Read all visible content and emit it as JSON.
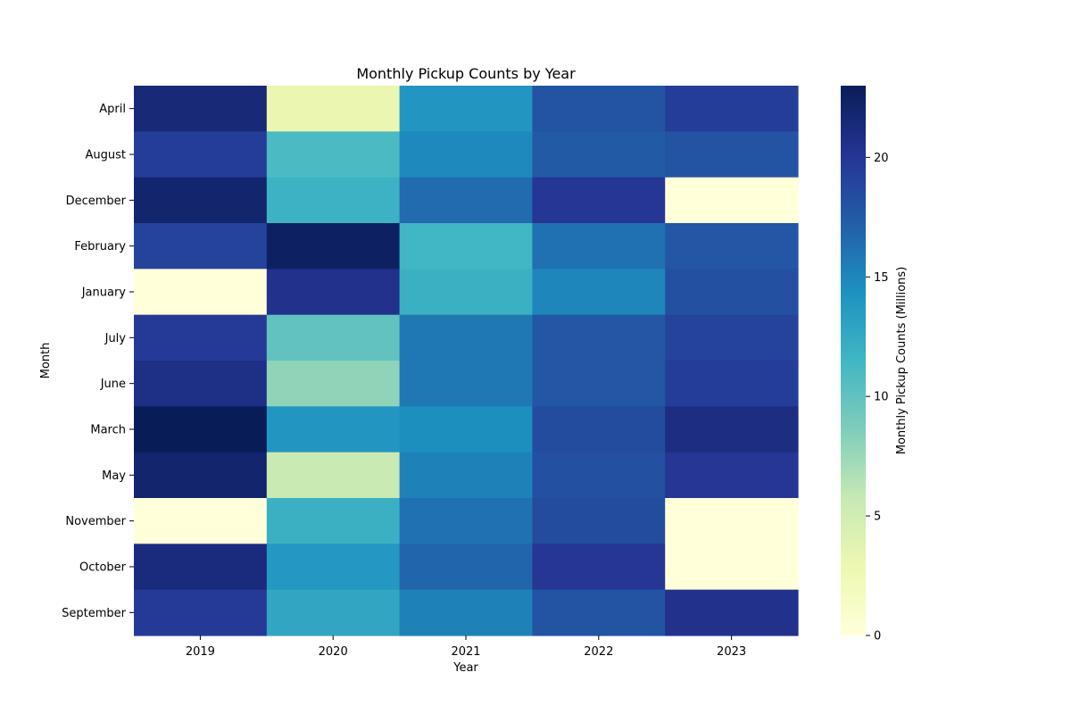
{
  "chart_data": {
    "type": "heatmap",
    "title": "Monthly Pickup Counts by Year",
    "xlabel": "Year",
    "ylabel": "Month",
    "x": [
      "2019",
      "2020",
      "2021",
      "2022",
      "2023"
    ],
    "y": [
      "April",
      "August",
      "December",
      "February",
      "January",
      "July",
      "June",
      "March",
      "May",
      "November",
      "October",
      "September"
    ],
    "values": [
      [
        21.5,
        3.0,
        14.0,
        18.0,
        19.5
      ],
      [
        19.5,
        11.0,
        14.8,
        17.5,
        18.0
      ],
      [
        22.0,
        11.8,
        16.5,
        20.0,
        0.0
      ],
      [
        19.0,
        22.5,
        11.5,
        16.2,
        17.8
      ],
      [
        0.0,
        20.5,
        12.0,
        15.0,
        18.2
      ],
      [
        19.8,
        10.0,
        15.8,
        17.8,
        19.0
      ],
      [
        20.8,
        8.0,
        15.8,
        17.8,
        19.5
      ],
      [
        23.0,
        14.0,
        14.5,
        18.5,
        21.0
      ],
      [
        22.0,
        5.5,
        15.2,
        18.2,
        20.0
      ],
      [
        0.0,
        12.0,
        16.2,
        18.5,
        0.0
      ],
      [
        21.2,
        13.8,
        16.8,
        20.0,
        0.0
      ],
      [
        19.8,
        12.8,
        15.2,
        18.0,
        20.5
      ]
    ],
    "colorbar": {
      "label": "Monthly Pickup Counts (Millions)",
      "min": 0,
      "max": 23,
      "ticks": [
        0,
        5,
        10,
        15,
        20
      ]
    },
    "colormap": "YlGnBu",
    "grid": false
  }
}
